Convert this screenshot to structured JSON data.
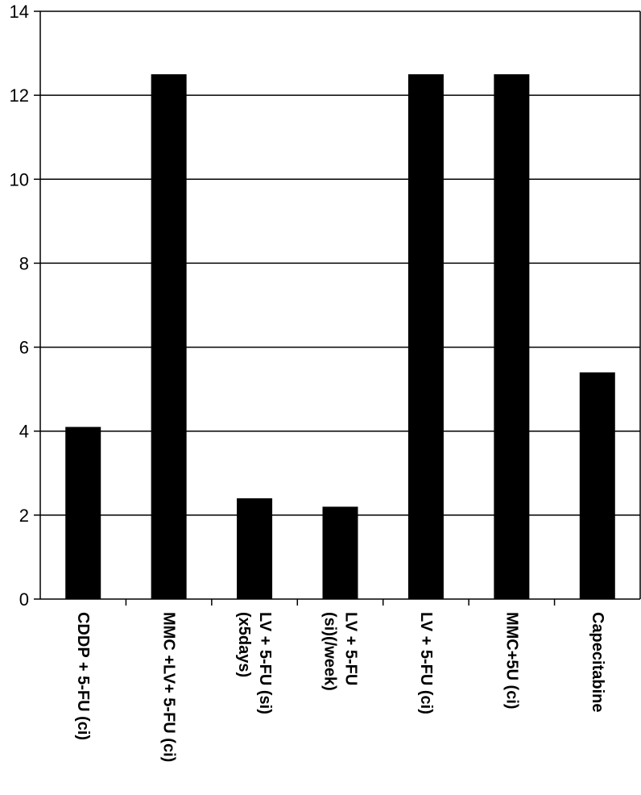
{
  "chart_data": {
    "type": "bar",
    "categories": [
      [
        "CDDP  + 5-FU (ci)"
      ],
      [
        "MMC +LV+ 5-FU (ci)"
      ],
      [
        "LV + 5-FU (si)",
        "(x5days)"
      ],
      [
        "LV + 5-FU",
        "(si)(/week)"
      ],
      [
        "LV + 5-FU (ci)"
      ],
      [
        "MMC+5U (ci)"
      ],
      [
        "Capecitabine"
      ]
    ],
    "values": [
      4.1,
      12.5,
      2.4,
      2.2,
      12.5,
      12.5,
      5.4
    ],
    "yticks": [
      "0",
      "2",
      "4",
      "6",
      "8",
      "10",
      "12",
      "14"
    ],
    "ylim": [
      0,
      14
    ],
    "grid": true,
    "bar_color": "#000000"
  }
}
